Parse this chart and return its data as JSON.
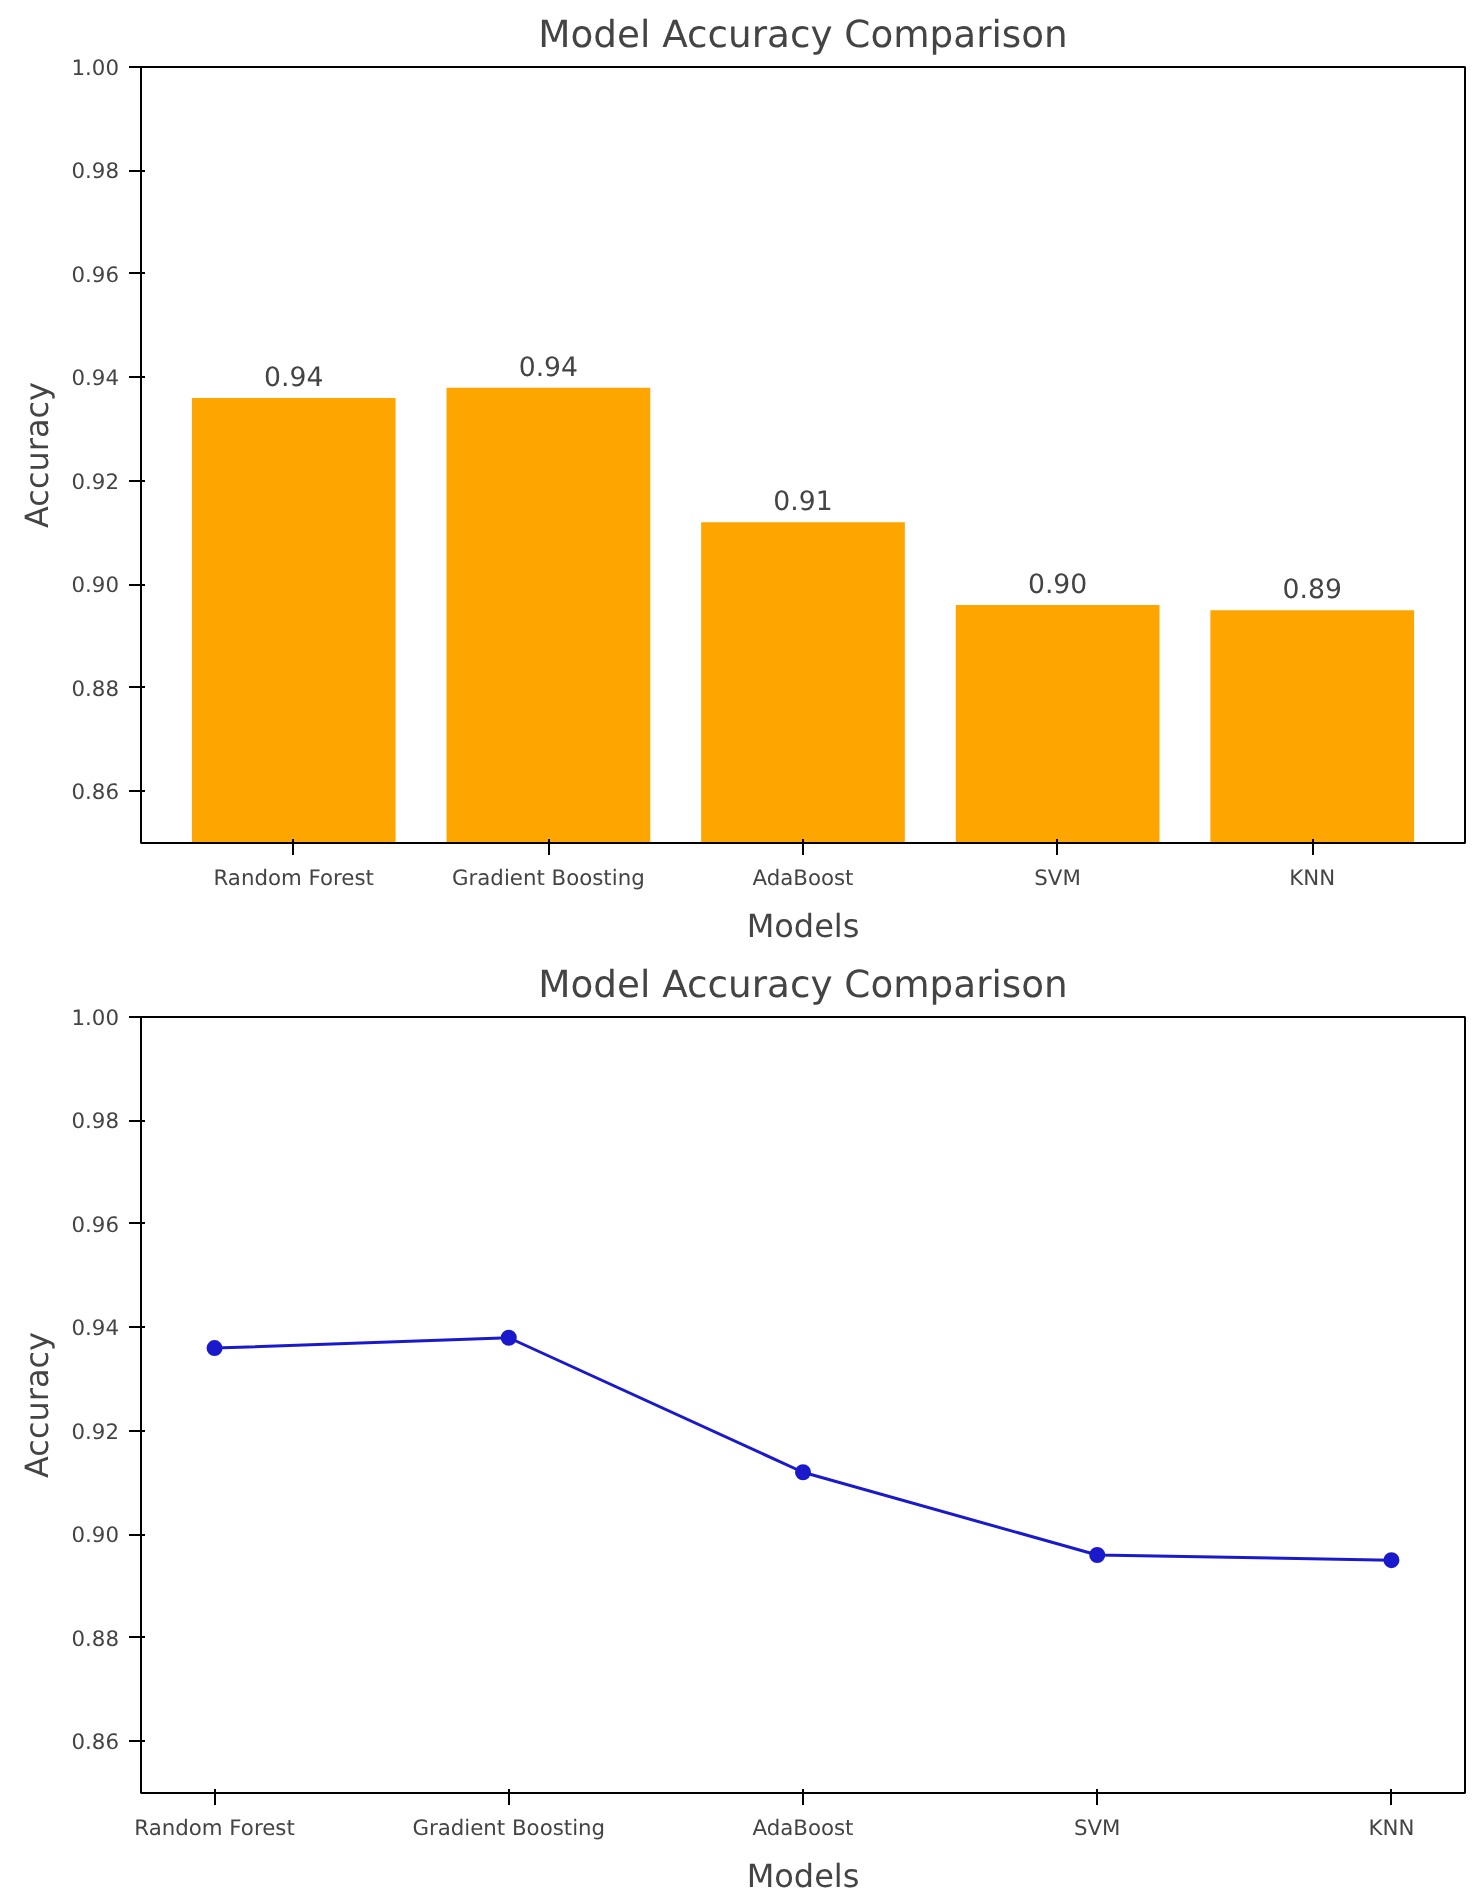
{
  "chart_data": [
    {
      "type": "bar",
      "title": "Model Accuracy Comparison",
      "xlabel": "Models",
      "ylabel": "Accuracy",
      "categories": [
        "Random Forest",
        "Gradient Boosting",
        "AdaBoost",
        "SVM",
        "KNN"
      ],
      "values": [
        0.936,
        0.938,
        0.912,
        0.896,
        0.895
      ],
      "value_labels": [
        "0.94",
        "0.94",
        "0.91",
        "0.90",
        "0.89"
      ],
      "color": "#ffa500",
      "ylim": [
        0.85,
        1.0
      ],
      "yticks": [
        {
          "value": 0.86,
          "label": "0.86"
        },
        {
          "value": 0.88,
          "label": "0.88"
        },
        {
          "value": 0.9,
          "label": "0.90"
        },
        {
          "value": 0.92,
          "label": "0.92"
        },
        {
          "value": 0.94,
          "label": "0.94"
        },
        {
          "value": 0.96,
          "label": "0.96"
        },
        {
          "value": 0.98,
          "label": "0.98"
        },
        {
          "value": 1.0,
          "label": "1.00"
        }
      ]
    },
    {
      "type": "line",
      "title": "Model Accuracy Comparison",
      "xlabel": "Models",
      "ylabel": "Accuracy",
      "categories": [
        "Random Forest",
        "Gradient Boosting",
        "AdaBoost",
        "SVM",
        "KNN"
      ],
      "values": [
        0.936,
        0.938,
        0.912,
        0.896,
        0.895
      ],
      "color": "#1a1acc",
      "marker": "circle",
      "ylim": [
        0.85,
        1.0
      ],
      "yticks": [
        {
          "value": 0.86,
          "label": "0.86"
        },
        {
          "value": 0.88,
          "label": "0.88"
        },
        {
          "value": 0.9,
          "label": "0.90"
        },
        {
          "value": 0.92,
          "label": "0.92"
        },
        {
          "value": 0.94,
          "label": "0.94"
        },
        {
          "value": 0.96,
          "label": "0.96"
        },
        {
          "value": 0.98,
          "label": "0.98"
        },
        {
          "value": 1.0,
          "label": "1.00"
        }
      ]
    }
  ]
}
